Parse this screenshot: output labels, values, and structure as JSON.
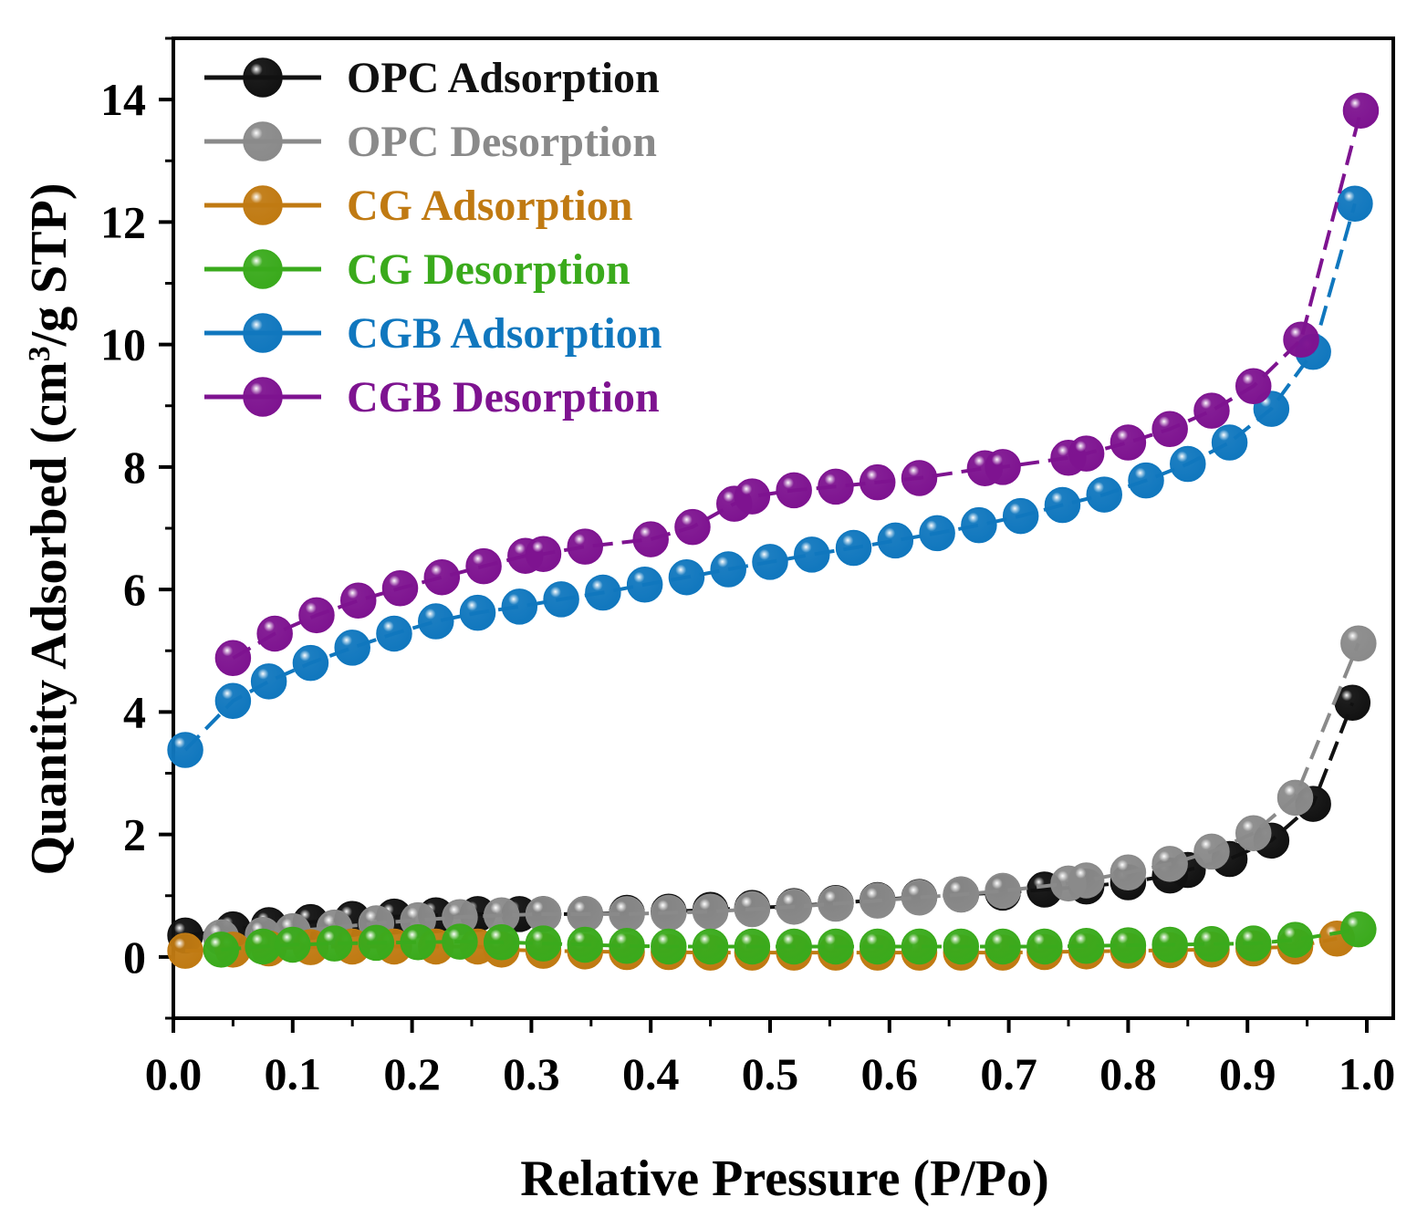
{
  "chart_data": {
    "type": "line",
    "title": "",
    "xlabel": "Relative Pressure (P/Po)",
    "ylabel_main": "Quantity Adsorbed (cm",
    "ylabel_sup": "3",
    "ylabel_tail": "/g STP)",
    "xlim": [
      0.0,
      1.0
    ],
    "ylim": [
      -1,
      15
    ],
    "x_ticks": [
      0.0,
      0.1,
      0.2,
      0.3,
      0.4,
      0.5,
      0.6,
      0.7,
      0.8,
      0.9,
      1.0
    ],
    "x_tick_labels": [
      "0.0",
      "0.1",
      "0.2",
      "0.3",
      "0.4",
      "0.5",
      "0.6",
      "0.7",
      "0.8",
      "0.9",
      "1.0"
    ],
    "y_ticks": [
      0,
      2,
      4,
      6,
      8,
      10,
      12,
      14
    ],
    "y_tick_labels": [
      "0",
      "2",
      "4",
      "6",
      "8",
      "10",
      "12",
      "14"
    ],
    "grid": false,
    "legend_position": "top-left",
    "series": [
      {
        "name": "OPC Adsorption",
        "color": "#111111",
        "x": [
          0.01,
          0.05,
          0.08,
          0.115,
          0.15,
          0.185,
          0.22,
          0.255,
          0.29,
          0.31,
          0.345,
          0.38,
          0.415,
          0.45,
          0.485,
          0.52,
          0.555,
          0.59,
          0.625,
          0.66,
          0.695,
          0.73,
          0.765,
          0.8,
          0.835,
          0.85,
          0.885,
          0.92,
          0.955,
          0.988
        ],
        "y": [
          0.35,
          0.45,
          0.52,
          0.57,
          0.62,
          0.66,
          0.68,
          0.7,
          0.7,
          0.7,
          0.7,
          0.72,
          0.74,
          0.77,
          0.8,
          0.83,
          0.88,
          0.93,
          0.98,
          1.02,
          1.05,
          1.1,
          1.15,
          1.22,
          1.33,
          1.42,
          1.6,
          1.9,
          2.5,
          4.15
        ]
      },
      {
        "name": "OPC Desorption",
        "color": "#8a8a8a",
        "x": [
          0.04,
          0.075,
          0.1,
          0.135,
          0.17,
          0.205,
          0.24,
          0.275,
          0.31,
          0.345,
          0.38,
          0.415,
          0.45,
          0.485,
          0.52,
          0.555,
          0.59,
          0.625,
          0.66,
          0.695,
          0.75,
          0.765,
          0.8,
          0.835,
          0.87,
          0.905,
          0.94,
          0.993
        ],
        "y": [
          0.32,
          0.36,
          0.42,
          0.48,
          0.55,
          0.6,
          0.65,
          0.68,
          0.7,
          0.7,
          0.7,
          0.72,
          0.74,
          0.78,
          0.82,
          0.87,
          0.92,
          0.97,
          1.02,
          1.08,
          1.2,
          1.25,
          1.38,
          1.52,
          1.72,
          2.02,
          2.6,
          5.12
        ]
      },
      {
        "name": "CG Adsorption",
        "color": "#c07a12",
        "x": [
          0.01,
          0.05,
          0.08,
          0.115,
          0.15,
          0.185,
          0.22,
          0.255,
          0.275,
          0.31,
          0.345,
          0.38,
          0.415,
          0.45,
          0.485,
          0.52,
          0.555,
          0.59,
          0.625,
          0.66,
          0.695,
          0.73,
          0.765,
          0.8,
          0.835,
          0.87,
          0.905,
          0.94,
          0.975
        ],
        "y": [
          0.1,
          0.12,
          0.14,
          0.16,
          0.17,
          0.17,
          0.17,
          0.17,
          0.12,
          0.1,
          0.09,
          0.08,
          0.08,
          0.07,
          0.07,
          0.07,
          0.07,
          0.07,
          0.07,
          0.07,
          0.07,
          0.08,
          0.09,
          0.1,
          0.11,
          0.12,
          0.14,
          0.17,
          0.3
        ]
      },
      {
        "name": "CG Desorption",
        "color": "#3aaa1c",
        "x": [
          0.04,
          0.075,
          0.1,
          0.135,
          0.17,
          0.205,
          0.24,
          0.275,
          0.31,
          0.345,
          0.38,
          0.415,
          0.45,
          0.485,
          0.52,
          0.555,
          0.59,
          0.625,
          0.66,
          0.695,
          0.73,
          0.765,
          0.8,
          0.835,
          0.87,
          0.905,
          0.94,
          0.993
        ],
        "y": [
          0.12,
          0.17,
          0.2,
          0.22,
          0.23,
          0.24,
          0.25,
          0.24,
          0.22,
          0.2,
          0.18,
          0.17,
          0.17,
          0.17,
          0.17,
          0.17,
          0.17,
          0.17,
          0.17,
          0.17,
          0.17,
          0.18,
          0.19,
          0.2,
          0.21,
          0.22,
          0.28,
          0.45
        ]
      },
      {
        "name": "CGB Adsorption",
        "color": "#1077be",
        "x": [
          0.01,
          0.05,
          0.08,
          0.115,
          0.15,
          0.185,
          0.22,
          0.255,
          0.29,
          0.325,
          0.36,
          0.395,
          0.43,
          0.465,
          0.5,
          0.535,
          0.57,
          0.605,
          0.64,
          0.675,
          0.71,
          0.745,
          0.78,
          0.815,
          0.85,
          0.885,
          0.92,
          0.955,
          0.99
        ],
        "y": [
          3.38,
          4.18,
          4.5,
          4.8,
          5.05,
          5.28,
          5.48,
          5.62,
          5.72,
          5.84,
          5.95,
          6.08,
          6.2,
          6.33,
          6.45,
          6.57,
          6.68,
          6.8,
          6.92,
          7.05,
          7.2,
          7.38,
          7.55,
          7.78,
          8.05,
          8.4,
          8.95,
          9.88,
          12.3
        ]
      },
      {
        "name": "CGB Desorption",
        "color": "#7e1390",
        "x": [
          0.05,
          0.085,
          0.12,
          0.155,
          0.19,
          0.225,
          0.26,
          0.295,
          0.31,
          0.345,
          0.4,
          0.435,
          0.47,
          0.485,
          0.52,
          0.555,
          0.59,
          0.625,
          0.68,
          0.695,
          0.75,
          0.765,
          0.8,
          0.835,
          0.87,
          0.905,
          0.945,
          0.995
        ],
        "y": [
          4.88,
          5.28,
          5.58,
          5.82,
          6.02,
          6.2,
          6.38,
          6.55,
          6.58,
          6.7,
          6.82,
          7.02,
          7.4,
          7.52,
          7.62,
          7.68,
          7.75,
          7.82,
          7.98,
          8.0,
          8.15,
          8.22,
          8.4,
          8.62,
          8.92,
          9.32,
          10.08,
          13.82
        ]
      }
    ]
  }
}
